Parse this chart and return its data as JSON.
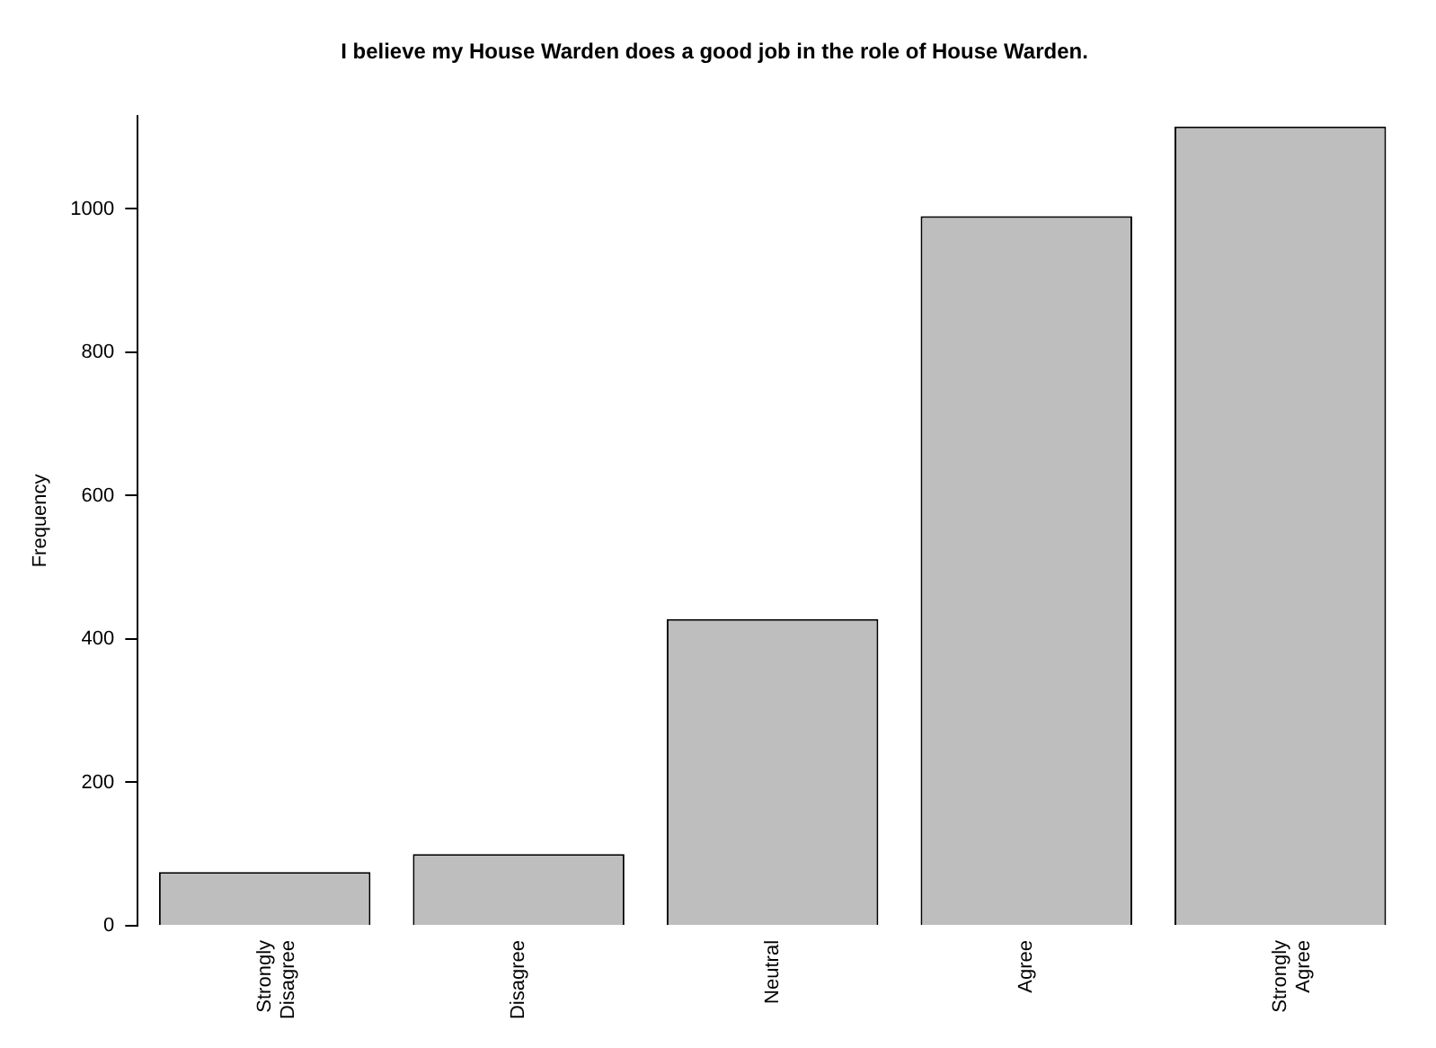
{
  "chart_data": {
    "type": "bar",
    "title": "I believe my House Warden does a good job in the role of House Warden.",
    "ylabel": "Frequency",
    "categories": [
      "Strongly\nDisagree",
      "Disagree",
      "Neutral",
      "Agree",
      "Strongly\nAgree"
    ],
    "values": [
      75,
      100,
      428,
      990,
      1115
    ],
    "color": "#bebebe",
    "ylim": [
      0,
      1130
    ],
    "yticks": [
      0,
      200,
      400,
      600,
      800,
      1000
    ],
    "grid": false,
    "legend": false
  }
}
